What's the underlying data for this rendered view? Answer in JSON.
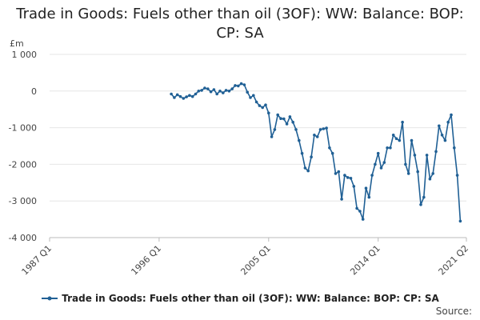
{
  "chart_data": {
    "type": "line",
    "title": "Trade in Goods: Fuels other than oil (3OF): WW: Balance: BOP: CP: SA",
    "unit_label": "£m",
    "xlim": [
      1987.0,
      2021.25
    ],
    "ylim": [
      -4000,
      1000
    ],
    "x_ticks": [
      {
        "label": "1987 Q1",
        "value": 1987.0
      },
      {
        "label": "1996 Q1",
        "value": 1996.0
      },
      {
        "label": "2005 Q1",
        "value": 2005.0
      },
      {
        "label": "2014 Q1",
        "value": 2014.0
      },
      {
        "label": "2021 Q2",
        "value": 2021.25
      }
    ],
    "y_ticks": [
      {
        "label": "1 000",
        "value": 1000
      },
      {
        "label": "0",
        "value": 0
      },
      {
        "label": "-1 000",
        "value": -1000
      },
      {
        "label": "-2 000",
        "value": -2000
      },
      {
        "label": "-3 000",
        "value": -3000
      },
      {
        "label": "-4 000",
        "value": -4000
      }
    ],
    "grid": true,
    "legend_position": "bottom",
    "color": "#206095",
    "series": [
      {
        "name": "Trade in Goods: Fuels other than oil (3OF): WW: Balance: BOP: CP: SA",
        "points": [
          {
            "x": 1997.0,
            "y": -80
          },
          {
            "x": 1997.25,
            "y": -180
          },
          {
            "x": 1997.5,
            "y": -100
          },
          {
            "x": 1997.75,
            "y": -150
          },
          {
            "x": 1998.0,
            "y": -200
          },
          {
            "x": 1998.25,
            "y": -160
          },
          {
            "x": 1998.5,
            "y": -120
          },
          {
            "x": 1998.75,
            "y": -150
          },
          {
            "x": 1999.0,
            "y": -80
          },
          {
            "x": 1999.25,
            "y": 0
          },
          {
            "x": 1999.5,
            "y": 20
          },
          {
            "x": 1999.75,
            "y": 80
          },
          {
            "x": 2000.0,
            "y": 60
          },
          {
            "x": 2000.25,
            "y": -20
          },
          {
            "x": 2000.5,
            "y": 40
          },
          {
            "x": 2000.75,
            "y": -80
          },
          {
            "x": 2001.0,
            "y": 0
          },
          {
            "x": 2001.25,
            "y": -50
          },
          {
            "x": 2001.5,
            "y": 20
          },
          {
            "x": 2001.75,
            "y": 0
          },
          {
            "x": 2002.0,
            "y": 60
          },
          {
            "x": 2002.25,
            "y": 150
          },
          {
            "x": 2002.5,
            "y": 140
          },
          {
            "x": 2002.75,
            "y": 200
          },
          {
            "x": 2003.0,
            "y": 170
          },
          {
            "x": 2003.25,
            "y": -30
          },
          {
            "x": 2003.5,
            "y": -180
          },
          {
            "x": 2003.75,
            "y": -120
          },
          {
            "x": 2004.0,
            "y": -300
          },
          {
            "x": 2004.25,
            "y": -400
          },
          {
            "x": 2004.5,
            "y": -450
          },
          {
            "x": 2004.75,
            "y": -380
          },
          {
            "x": 2005.0,
            "y": -600
          },
          {
            "x": 2005.25,
            "y": -1250
          },
          {
            "x": 2005.5,
            "y": -1050
          },
          {
            "x": 2005.75,
            "y": -650
          },
          {
            "x": 2006.0,
            "y": -750
          },
          {
            "x": 2006.25,
            "y": -760
          },
          {
            "x": 2006.5,
            "y": -900
          },
          {
            "x": 2006.75,
            "y": -700
          },
          {
            "x": 2007.0,
            "y": -850
          },
          {
            "x": 2007.25,
            "y": -1050
          },
          {
            "x": 2007.5,
            "y": -1350
          },
          {
            "x": 2007.75,
            "y": -1700
          },
          {
            "x": 2008.0,
            "y": -2100
          },
          {
            "x": 2008.25,
            "y": -2180
          },
          {
            "x": 2008.5,
            "y": -1800
          },
          {
            "x": 2008.75,
            "y": -1200
          },
          {
            "x": 2009.0,
            "y": -1250
          },
          {
            "x": 2009.25,
            "y": -1050
          },
          {
            "x": 2009.5,
            "y": -1030
          },
          {
            "x": 2009.75,
            "y": -1010
          },
          {
            "x": 2010.0,
            "y": -1550
          },
          {
            "x": 2010.25,
            "y": -1700
          },
          {
            "x": 2010.5,
            "y": -2250
          },
          {
            "x": 2010.75,
            "y": -2200
          },
          {
            "x": 2011.0,
            "y": -2950
          },
          {
            "x": 2011.25,
            "y": -2300
          },
          {
            "x": 2011.5,
            "y": -2360
          },
          {
            "x": 2011.75,
            "y": -2380
          },
          {
            "x": 2012.0,
            "y": -2600
          },
          {
            "x": 2012.25,
            "y": -3200
          },
          {
            "x": 2012.5,
            "y": -3280
          },
          {
            "x": 2012.75,
            "y": -3500
          },
          {
            "x": 2013.0,
            "y": -2650
          },
          {
            "x": 2013.25,
            "y": -2900
          },
          {
            "x": 2013.5,
            "y": -2300
          },
          {
            "x": 2013.75,
            "y": -2000
          },
          {
            "x": 2014.0,
            "y": -1700
          },
          {
            "x": 2014.25,
            "y": -2100
          },
          {
            "x": 2014.5,
            "y": -1950
          },
          {
            "x": 2014.75,
            "y": -1550
          },
          {
            "x": 2015.0,
            "y": -1550
          },
          {
            "x": 2015.25,
            "y": -1200
          },
          {
            "x": 2015.5,
            "y": -1300
          },
          {
            "x": 2015.75,
            "y": -1350
          },
          {
            "x": 2016.0,
            "y": -850
          },
          {
            "x": 2016.25,
            "y": -2000
          },
          {
            "x": 2016.5,
            "y": -2250
          },
          {
            "x": 2016.75,
            "y": -1350
          },
          {
            "x": 2017.0,
            "y": -1750
          },
          {
            "x": 2017.25,
            "y": -2200
          },
          {
            "x": 2017.5,
            "y": -3100
          },
          {
            "x": 2017.75,
            "y": -2900
          },
          {
            "x": 2018.0,
            "y": -1750
          },
          {
            "x": 2018.25,
            "y": -2400
          },
          {
            "x": 2018.5,
            "y": -2250
          },
          {
            "x": 2018.75,
            "y": -1650
          },
          {
            "x": 2019.0,
            "y": -950
          },
          {
            "x": 2019.25,
            "y": -1200
          },
          {
            "x": 2019.5,
            "y": -1350
          },
          {
            "x": 2019.75,
            "y": -850
          },
          {
            "x": 2020.0,
            "y": -650
          },
          {
            "x": 2020.25,
            "y": -1550
          },
          {
            "x": 2020.5,
            "y": -2300
          },
          {
            "x": 2020.75,
            "y": -3550
          }
        ]
      }
    ]
  },
  "legend_label": "Trade in Goods: Fuels other than oil (3OF): WW: Balance: BOP: CP: SA",
  "source_label": "Source:"
}
